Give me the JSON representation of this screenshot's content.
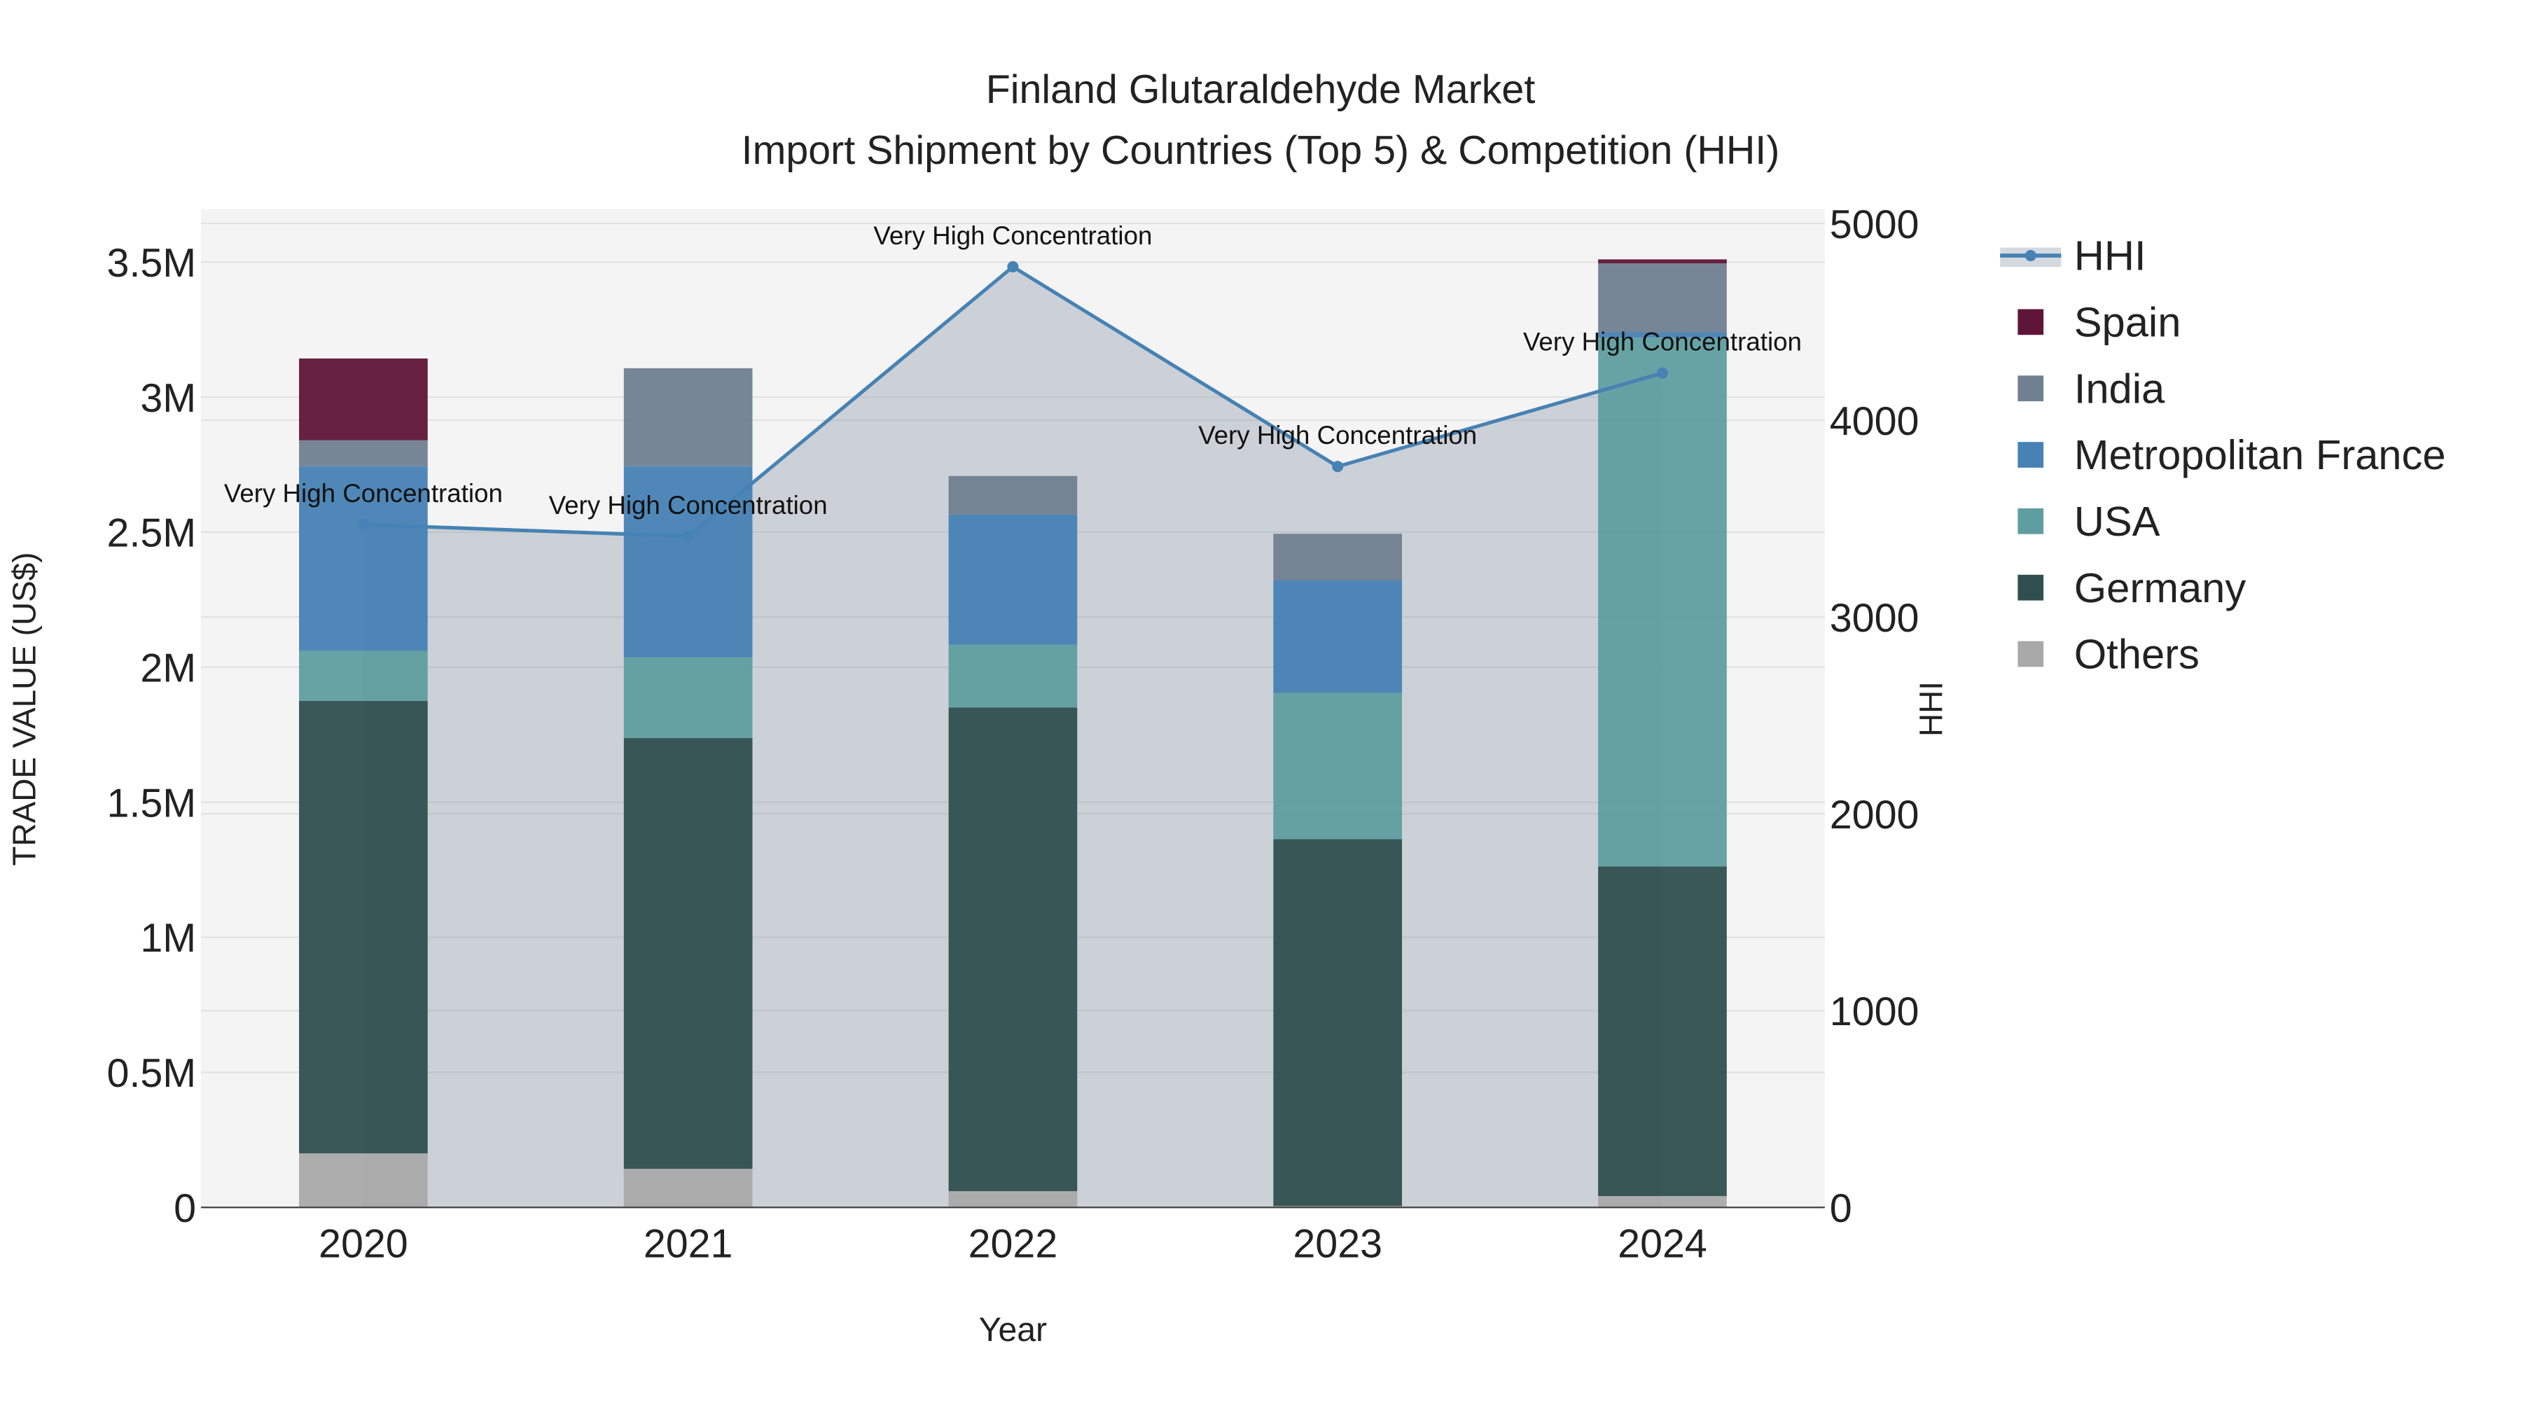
{
  "chart_data": {
    "type": "bar",
    "title": "Finland Glutaraldehyde Market",
    "subtitle": "Import Shipment by Countries (Top 5) & Competition (HHI)",
    "xlabel": "Year",
    "ylabel": "TRADE VALUE (US$)",
    "y2label": "HHI",
    "categories": [
      "2020",
      "2021",
      "2022",
      "2023",
      "2024"
    ],
    "ylim": [
      0,
      3700000
    ],
    "y2lim": [
      0,
      5050
    ],
    "yticks": [
      0,
      500000,
      1000000,
      1500000,
      2000000,
      2500000,
      3000000,
      3500000
    ],
    "ytick_labels": [
      "0",
      "0.5M",
      "1M",
      "1.5M",
      "2M",
      "2.5M",
      "3M",
      "3.5M"
    ],
    "y2ticks": [
      0,
      1000,
      2000,
      3000,
      4000,
      5000
    ],
    "y2tick_labels": [
      "0",
      "1000",
      "2000",
      "3000",
      "4000",
      "5000"
    ],
    "grid": true,
    "legend_position": "right",
    "series": [
      {
        "name": "Others",
        "color": "#a9a9a9",
        "values": [
          200000,
          143000,
          60000,
          5000,
          42000
        ]
      },
      {
        "name": "Germany",
        "color": "#2f4f4f",
        "values": [
          1675000,
          1595000,
          1791000,
          1358000,
          1220000
        ]
      },
      {
        "name": "USA",
        "color": "#5f9ea0",
        "values": [
          185000,
          298000,
          232000,
          542000,
          1958000
        ]
      },
      {
        "name": "Metropolitan France",
        "color": "#4682b4",
        "values": [
          684000,
          708000,
          482000,
          416000,
          20000
        ]
      },
      {
        "name": "India",
        "color": "#708090",
        "values": [
          96000,
          363000,
          143000,
          173000,
          255000
        ]
      },
      {
        "name": "Spain",
        "color": "#5f1537",
        "values": [
          303000,
          0,
          0,
          0,
          15000
        ]
      }
    ],
    "hhi": {
      "name": "HHI",
      "color": "#4682b4",
      "values": [
        3470,
        3410,
        4780,
        3765,
        4240
      ],
      "annotations": [
        "Very High Concentration",
        "Very High Concentration",
        "Very High Concentration",
        "Very High Concentration",
        "Very High Concentration"
      ]
    },
    "legend": [
      "HHI",
      "Spain",
      "India",
      "Metropolitan France",
      "USA",
      "Germany",
      "Others"
    ]
  }
}
